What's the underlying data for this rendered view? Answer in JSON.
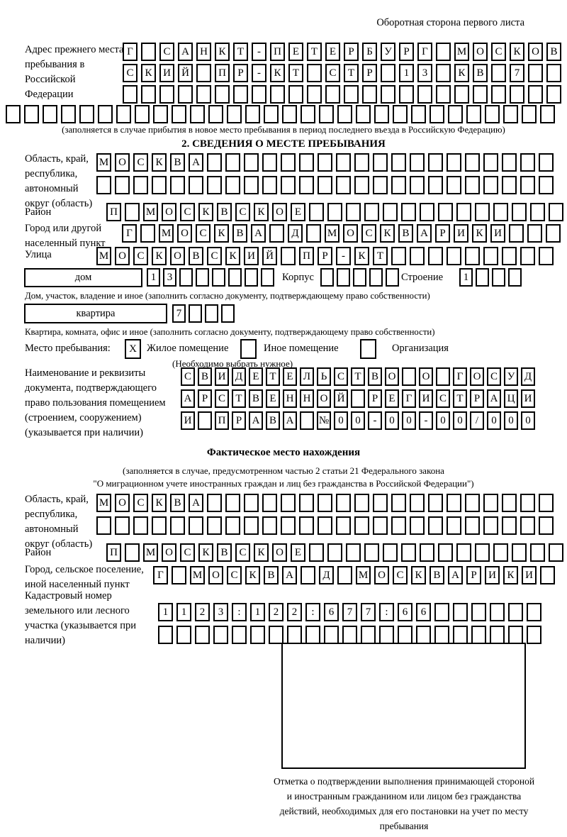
{
  "page_note": "Оборотная сторона первого листа",
  "prev_address": {
    "label": "Адрес прежнего места пребывания в Российской Федерации",
    "row1": {
      "text": "Г САНКТ-ПЕТЕРБУРГ МОСКОВ",
      "len": 24
    },
    "row2": {
      "text": "СКИЙ ПР-КТ СТР 13 КВ 7",
      "len": 24
    },
    "row3": {
      "text": "",
      "len": 24
    },
    "row4": {
      "text": "",
      "len": 30
    },
    "note": "(заполняется в случае прибытия в новое место пребывания в период последнего въезда в Российскую Федерацию)"
  },
  "section2": {
    "title": "2. СВЕДЕНИЯ О МЕСТЕ ПРЕБЫВАНИЯ",
    "oblast": {
      "label": "Область, край, республика, автономный округ (область)",
      "row1": {
        "text": "МОСКВА",
        "len": 25
      },
      "row2": {
        "text": "",
        "len": 25
      }
    },
    "raion": {
      "label": "Район",
      "row": {
        "text": "П МОСКВСКОЕ",
        "len": 25
      }
    },
    "gorod": {
      "label": "Город или другой населенный пункт",
      "row": {
        "text": "Г МОСКВА Д МОСКВАРИКИ",
        "len": 24
      }
    },
    "ulitsa": {
      "label": "Улица",
      "row": {
        "text": "МОСКОВСКИЙ ПР-КТ",
        "len": 25
      }
    },
    "dom": {
      "box_label": "дом",
      "row": {
        "text": "13",
        "len": 8
      },
      "korpus_label": "Корпус",
      "korpus_row": {
        "text": "",
        "len": 5
      },
      "stroenie_label": "Строение",
      "stroenie_row": {
        "text": "1",
        "len": 4
      },
      "note": "Дом, участок, владение и иное (заполнить согласно документу, подтверждающему право собственности)"
    },
    "kvartira": {
      "box_label": "квартира",
      "row": {
        "text": "7",
        "len": 4
      },
      "note": "Квартира, комната, офис и иное (заполнить согласно документу, подтверждающему право собственности)"
    },
    "mesto": {
      "label": "Место пребывания:",
      "opt1": {
        "mark": "X",
        "label": "Жилое помещение"
      },
      "opt2": {
        "mark": "",
        "label": "Иное помещение"
      },
      "opt3": {
        "mark": "",
        "label": "Организация"
      },
      "note": "(Необходимо выбрать нужное)"
    },
    "doc": {
      "label": "Наименование и реквизиты документа, подтверждающего право пользования помещением (строением, сооружением) (указывается при наличии)",
      "row1": {
        "text": "СВИДЕТЕЛЬСТВО О ГОСУД",
        "len": 21
      },
      "row2": {
        "text": "АРСТВЕННОЙ РЕГИСТРАЦИ",
        "len": 21
      },
      "row3": {
        "text": "И ПРАВА №00-00-00/000",
        "len": 21
      }
    }
  },
  "fact": {
    "title": "Фактическое место нахождения",
    "note1": "(заполняется в случае, предусмотренном частью 2 статьи 21 Федерального закона",
    "note2": "\"О миграционном учете иностранных граждан и лиц без гражданства в Российской Федерации\")",
    "oblast": {
      "label": "Область, край, республика, автономный округ (область)",
      "row1": {
        "text": "МОСКВА",
        "len": 25
      },
      "row2": {
        "text": "",
        "len": 25
      }
    },
    "raion": {
      "label": "Район",
      "row": {
        "text": "П МОСКВСКОЕ",
        "len": 25
      }
    },
    "gorod": {
      "label": "Город, сельское поселение, иной населенный пункт",
      "row": {
        "text": "Г МОСКВА Д МОСКВАРИКИ",
        "len": 22
      }
    },
    "kadastr": {
      "label": "Кадастровый номер земельного или лесного участка (указывается при наличии)",
      "row1": {
        "text": "1123:122:677:66",
        "len": 21
      },
      "row2": {
        "text": "",
        "len": 21
      }
    },
    "stamp_caption": "Отметка о подтверждении выполнения принимающей стороной и иностранным гражданином или лицом без гражданства действий, необходимых для его постановки на учет по месту пребывания"
  }
}
